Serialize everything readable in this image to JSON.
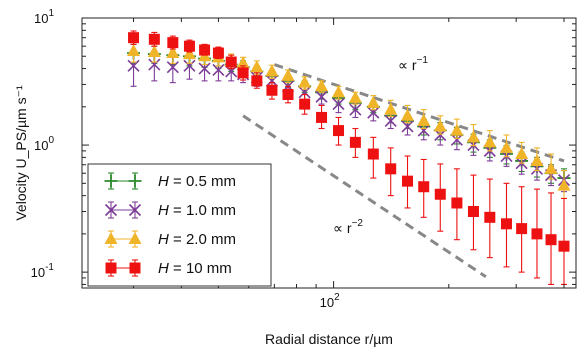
{
  "chart_data": {
    "type": "scatter",
    "title": "",
    "xlabel": "Radial distance r/µm",
    "ylabel": "Velocity U_PS/µm s⁻¹",
    "x_scale": "log",
    "y_scale": "log",
    "xlim": [
      22,
      430
    ],
    "ylim": [
      0.075,
      10
    ],
    "x_ticks": [
      {
        "value": 100,
        "label": "10",
        "exp": "2"
      }
    ],
    "y_ticks": [
      {
        "value": 10,
        "label": "10",
        "exp": "1"
      },
      {
        "value": 1,
        "label": "10",
        "exp": "0"
      },
      {
        "value": 0.1,
        "label": "10",
        "exp": "-1"
      }
    ],
    "grid": false,
    "legend_position": "bottom-left",
    "series": [
      {
        "name": "H = 0.5 mm",
        "label_var": "H",
        "label_rest": " = 0.5 mm",
        "color": "#2a8a2a",
        "marker": "plus",
        "x": [
          30,
          34,
          38,
          42,
          46,
          50,
          54,
          58,
          63,
          69,
          76,
          84,
          93,
          103,
          114,
          127,
          141,
          156,
          172,
          190,
          210,
          232,
          256,
          283,
          310,
          340,
          370,
          400
        ],
        "y": [
          5.3,
          5.2,
          5.1,
          5.0,
          4.8,
          4.6,
          4.3,
          4.1,
          3.8,
          3.5,
          3.2,
          2.9,
          2.6,
          2.35,
          2.15,
          2.0,
          1.7,
          1.55,
          1.4,
          1.3,
          1.2,
          1.05,
          0.95,
          0.85,
          0.75,
          0.68,
          0.6,
          0.55
        ],
        "err_lo": [
          0.9,
          0.8,
          0.8,
          0.8,
          0.7,
          0.6,
          0.5,
          0.5,
          0.4,
          0.4,
          0.35,
          0.3,
          0.3,
          0.25,
          0.25,
          0.2,
          0.2,
          0.2,
          0.2,
          0.2,
          0.18,
          0.17,
          0.15,
          0.14,
          0.13,
          0.12,
          0.1,
          0.1
        ],
        "err_hi": [
          0.9,
          0.8,
          0.8,
          0.8,
          0.7,
          0.6,
          0.5,
          0.5,
          0.4,
          0.4,
          0.35,
          0.3,
          0.3,
          0.25,
          0.25,
          0.2,
          0.2,
          0.2,
          0.2,
          0.2,
          0.18,
          0.17,
          0.15,
          0.14,
          0.13,
          0.12,
          0.1,
          0.1
        ]
      },
      {
        "name": "H = 1.0 mm",
        "label_var": "H",
        "label_rest": " = 1.0 mm",
        "color": "#7d3c98",
        "marker": "cross",
        "x": [
          30,
          34,
          38,
          42,
          46,
          50,
          54,
          58,
          63,
          69,
          76,
          84,
          93,
          103,
          114,
          127,
          141,
          156,
          172,
          190,
          210,
          232,
          256,
          283,
          310,
          340,
          370,
          400
        ],
        "y": [
          4.2,
          4.3,
          4.1,
          4.2,
          4.0,
          3.9,
          3.8,
          3.6,
          3.4,
          3.2,
          2.9,
          2.6,
          2.4,
          2.1,
          1.9,
          1.8,
          1.55,
          1.4,
          1.3,
          1.2,
          1.1,
          1.0,
          0.9,
          0.82,
          0.72,
          0.65,
          0.58,
          0.53
        ],
        "err_lo": [
          1.3,
          1.1,
          1.0,
          0.9,
          0.8,
          0.7,
          0.6,
          0.5,
          0.5,
          0.4,
          0.4,
          0.35,
          0.3,
          0.3,
          0.25,
          0.25,
          0.2,
          0.2,
          0.2,
          0.2,
          0.18,
          0.17,
          0.15,
          0.14,
          0.13,
          0.12,
          0.1,
          0.1
        ],
        "err_hi": [
          1.3,
          1.1,
          1.0,
          0.9,
          0.8,
          0.7,
          0.6,
          0.5,
          0.5,
          0.4,
          0.4,
          0.35,
          0.3,
          0.3,
          0.25,
          0.25,
          0.2,
          0.2,
          0.2,
          0.2,
          0.18,
          0.17,
          0.15,
          0.14,
          0.13,
          0.12,
          0.1,
          0.1
        ]
      },
      {
        "name": "H = 2.0 mm",
        "label_var": "H",
        "label_rest": " = 2.0 mm",
        "color": "#f0b429",
        "marker": "triangle",
        "x": [
          30,
          34,
          38,
          42,
          46,
          50,
          54,
          58,
          63,
          69,
          76,
          84,
          93,
          103,
          114,
          127,
          141,
          156,
          172,
          190,
          210,
          232,
          256,
          283,
          310,
          340,
          370,
          400
        ],
        "y": [
          5.5,
          5.4,
          5.3,
          5.2,
          5.0,
          4.9,
          4.6,
          4.4,
          4.1,
          3.8,
          3.5,
          3.1,
          2.9,
          2.6,
          2.35,
          2.15,
          1.9,
          1.7,
          1.55,
          1.4,
          1.3,
          1.15,
          1.05,
          0.95,
          0.85,
          0.75,
          0.65,
          0.48
        ],
        "err_lo": [
          1.0,
          0.9,
          0.9,
          0.8,
          0.7,
          0.7,
          0.6,
          0.5,
          0.5,
          0.45,
          0.4,
          0.35,
          0.3,
          0.3,
          0.25,
          0.25,
          0.22,
          0.2,
          0.2,
          0.18,
          0.17,
          0.16,
          0.15,
          0.14,
          0.13,
          0.12,
          0.11,
          0.1
        ],
        "err_hi": [
          1.0,
          0.9,
          0.9,
          0.8,
          0.7,
          0.7,
          0.6,
          0.5,
          0.5,
          0.45,
          0.4,
          0.35,
          0.3,
          0.3,
          0.25,
          0.3,
          0.35,
          0.35,
          0.35,
          0.3,
          0.3,
          0.3,
          0.25,
          0.25,
          0.2,
          0.2,
          0.2,
          0.15
        ]
      },
      {
        "name": "H = 10 mm",
        "label_var": "H",
        "label_rest": " = 10 mm",
        "color": "#ee1111",
        "marker": "square",
        "x": [
          30,
          34,
          38,
          42,
          46,
          50,
          54,
          58,
          63,
          69,
          76,
          84,
          93,
          103,
          114,
          127,
          141,
          156,
          172,
          190,
          210,
          232,
          256,
          283,
          310,
          340,
          370,
          400
        ],
        "y": [
          7.0,
          6.8,
          6.4,
          6.0,
          5.6,
          5.3,
          4.5,
          3.7,
          3.2,
          2.7,
          2.5,
          2.1,
          1.65,
          1.3,
          1.05,
          0.85,
          0.65,
          0.52,
          0.47,
          0.41,
          0.35,
          0.3,
          0.27,
          0.24,
          0.22,
          0.2,
          0.18,
          0.16
        ],
        "err_lo": [
          0.8,
          0.8,
          0.7,
          0.6,
          0.5,
          0.5,
          0.5,
          0.45,
          0.4,
          0.4,
          0.35,
          0.35,
          0.3,
          0.3,
          0.25,
          0.3,
          0.25,
          0.2,
          0.2,
          0.2,
          0.17,
          0.15,
          0.14,
          0.13,
          0.12,
          0.11,
          0.1,
          0.08
        ],
        "err_hi": [
          0.9,
          0.9,
          0.8,
          0.7,
          0.6,
          0.6,
          0.6,
          0.5,
          0.5,
          0.4,
          0.4,
          0.4,
          0.4,
          0.35,
          0.3,
          0.3,
          0.3,
          0.3,
          0.3,
          0.3,
          0.3,
          0.28,
          0.27,
          0.26,
          0.25,
          0.25,
          0.24,
          0.22
        ]
      }
    ],
    "annotations": [
      {
        "label": "∝ r",
        "exp": "−1",
        "guide_x": [
          70,
          400
        ],
        "guide_y": [
          4.3,
          0.75
        ]
      },
      {
        "label": "∝ r",
        "exp": "−2",
        "guide_x": [
          58,
          250
        ],
        "guide_y": [
          1.7,
          0.092
        ]
      }
    ]
  }
}
